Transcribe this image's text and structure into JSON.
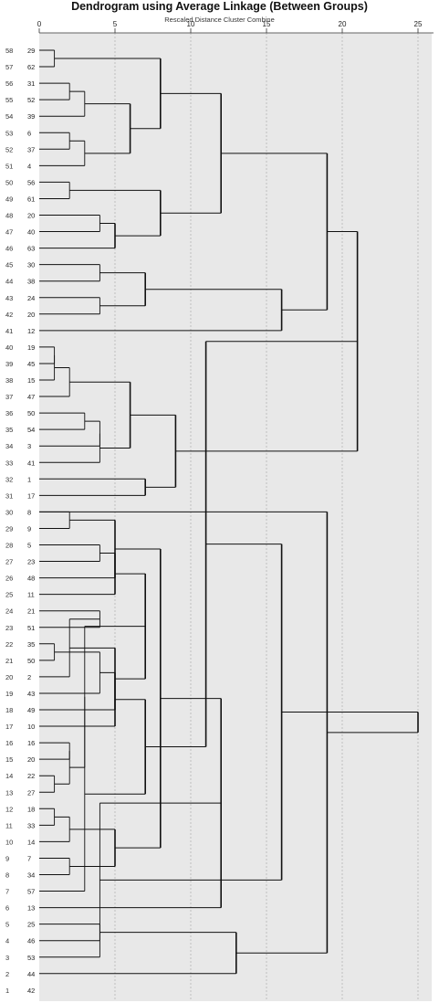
{
  "title": "Dendrogram using Average Linkage (Between Groups)",
  "subtitle": "Rescaled Distance Cluster Combine",
  "chart_data": {
    "type": "dendrogram",
    "xlim": [
      0,
      25
    ],
    "ticks": [
      0,
      5,
      10,
      15,
      20,
      25
    ],
    "grid": true,
    "leaf_positions": [
      "58",
      "57",
      "56",
      "55",
      "54",
      "53",
      "52",
      "51",
      "50",
      "49",
      "48",
      "47",
      "46",
      "45",
      "44",
      "43",
      "42",
      "41",
      "40",
      "39",
      "38",
      "37",
      "36",
      "35",
      "34",
      "33",
      "32",
      "31",
      "30",
      "29",
      "28",
      "27",
      "26",
      "25",
      "24",
      "23",
      "22",
      "21",
      "20",
      "19",
      "18",
      "17",
      "16",
      "15",
      "14",
      "13",
      "12",
      "11",
      "10",
      "9",
      "8",
      "7",
      "6",
      "5",
      "4",
      "3",
      "2",
      "1"
    ],
    "leaf_labels": [
      "29",
      "62",
      "31",
      "52",
      "39",
      "6",
      "37",
      "4",
      "56",
      "61",
      "20",
      "40",
      "63",
      "30",
      "38",
      "24",
      "20",
      "12",
      "19",
      "45",
      "15",
      "47",
      "50",
      "54",
      "3",
      "41",
      "1",
      "17",
      "8",
      "9",
      "5",
      "23",
      "48",
      "11",
      "21",
      "51",
      "35",
      "50",
      "2",
      "43",
      "49",
      "10",
      "16",
      "20",
      "22",
      "27",
      "18",
      "33",
      "14",
      "7",
      "34",
      "57",
      "13",
      "25",
      "46",
      "53",
      "44",
      "42"
    ],
    "merges": [
      {
        "a": "L0",
        "b": "L1",
        "h": 1
      },
      {
        "a": "L2",
        "b": "L3",
        "h": 2
      },
      {
        "a": "N1",
        "b": "L4",
        "h": 3
      },
      {
        "a": "L5",
        "b": "L6",
        "h": 2
      },
      {
        "a": "N3",
        "b": "L7",
        "h": 3
      },
      {
        "a": "N2",
        "b": "N4",
        "h": 6
      },
      {
        "a": "N0",
        "b": "N5",
        "h": 8
      },
      {
        "a": "L8",
        "b": "L9",
        "h": 2
      },
      {
        "a": "L10",
        "b": "L11",
        "h": 4
      },
      {
        "a": "N8",
        "b": "L12",
        "h": 5
      },
      {
        "a": "N7",
        "b": "N9",
        "h": 8
      },
      {
        "a": "N6",
        "b": "N10",
        "h": 12
      },
      {
        "a": "L13",
        "b": "L14",
        "h": 4
      },
      {
        "a": "L15",
        "b": "L16",
        "h": 4
      },
      {
        "a": "N12",
        "b": "N13",
        "h": 7
      },
      {
        "a": "N14",
        "b": "L17",
        "h": 16
      },
      {
        "a": "N11",
        "b": "N15",
        "h": 19
      },
      {
        "a": "L18",
        "b": "L19",
        "h": 1
      },
      {
        "a": "N17",
        "b": "L20",
        "h": 1
      },
      {
        "a": "N18",
        "b": "L21",
        "h": 2
      },
      {
        "a": "L22",
        "b": "L23",
        "h": 3
      },
      {
        "a": "N20",
        "b": "L24",
        "h": 4
      },
      {
        "a": "N21",
        "b": "L25",
        "h": 4
      },
      {
        "a": "N19",
        "b": "N22",
        "h": 6
      },
      {
        "a": "L26",
        "b": "L27",
        "h": 7
      },
      {
        "a": "N23",
        "b": "N24",
        "h": 9
      },
      {
        "a": "N16",
        "b": "N25",
        "h": 21
      },
      {
        "a": "L28",
        "b": "L29",
        "h": 2
      },
      {
        "a": "L30",
        "b": "L31",
        "h": 4
      },
      {
        "a": "N27",
        "b": "L32",
        "h": 5
      },
      {
        "a": "N28",
        "b": "L33",
        "h": 5
      },
      {
        "a": "L34",
        "b": "L35",
        "h": 4
      },
      {
        "a": "L36",
        "b": "L37",
        "h": 1
      },
      {
        "a": "N31",
        "b": "L38",
        "h": 2
      },
      {
        "a": "N32",
        "b": "L39",
        "h": 4
      },
      {
        "a": "N33",
        "b": "L40",
        "h": 5
      },
      {
        "a": "N34",
        "b": "L41",
        "h": 5
      },
      {
        "a": "N30",
        "b": "N35",
        "h": 7
      },
      {
        "a": "L42",
        "b": "L43",
        "h": 2
      },
      {
        "a": "L44",
        "b": "L45",
        "h": 1
      },
      {
        "a": "L46",
        "b": "L47",
        "h": 1
      },
      {
        "a": "N38",
        "b": "N39",
        "h": 2
      },
      {
        "a": "N40",
        "b": "L48",
        "h": 2
      },
      {
        "a": "N37",
        "b": "N41",
        "h": 3
      },
      {
        "a": "L49",
        "b": "L50",
        "h": 2
      },
      {
        "a": "N43",
        "b": "L51",
        "h": 3
      },
      {
        "a": "N42",
        "b": "N44",
        "h": 5
      },
      {
        "a": "N36",
        "b": "N45",
        "h": 7
      },
      {
        "a": "N29",
        "b": "N46",
        "h": 8
      },
      {
        "a": "N26",
        "b": "N47",
        "h": 11
      },
      {
        "a": "N48",
        "b": "L52",
        "h": 12
      },
      {
        "a": "L53",
        "b": "L54",
        "h": 4
      },
      {
        "a": "N50",
        "b": "L55",
        "h": 4
      },
      {
        "a": "N51",
        "b": "L56",
        "h": 13
      },
      {
        "a": "N49",
        "b": "N52",
        "h": 16
      },
      {
        "a": "L28_0",
        "b": "N53",
        "h": 19
      },
      {
        "a": "N54",
        "b": "N55",
        "h": 25
      }
    ]
  }
}
